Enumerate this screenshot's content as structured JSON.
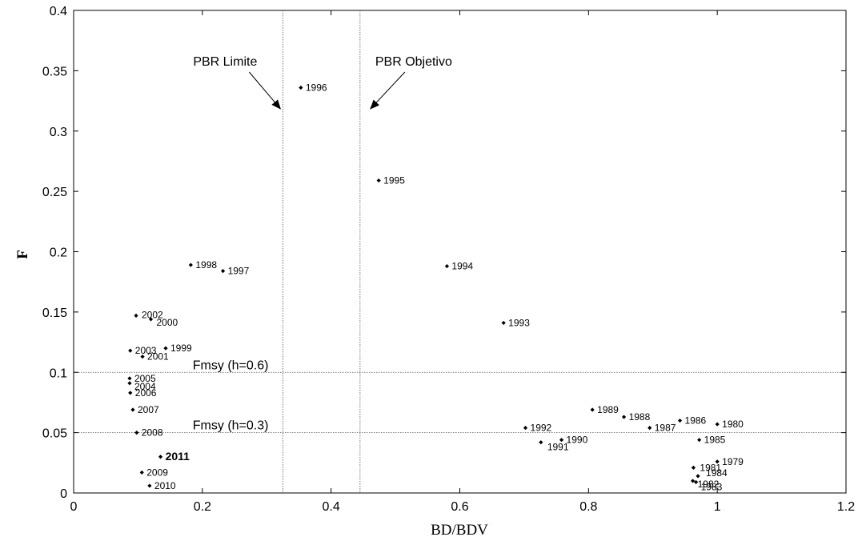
{
  "chart_data": {
    "type": "scatter",
    "title": "",
    "xlabel": "BD/BDV",
    "ylabel": "F",
    "xlim": [
      0,
      1.2
    ],
    "ylim": [
      0,
      0.4
    ],
    "x_ticks": [
      "0",
      "0.2",
      "0.4",
      "0.6",
      "0.8",
      "1",
      "1.2"
    ],
    "y_ticks": [
      "0",
      "0.05",
      "0.1",
      "0.15",
      "0.2",
      "0.25",
      "0.3",
      "0.35",
      "0.4"
    ],
    "grid": false,
    "points": [
      {
        "label": "1979",
        "x": 1.0,
        "y": 0.026
      },
      {
        "label": "1980",
        "x": 1.0,
        "y": 0.057
      },
      {
        "label": "1981",
        "x": 0.963,
        "y": 0.021
      },
      {
        "label": "1982",
        "x": 0.962,
        "y": 0.01
      },
      {
        "label": "1983",
        "x": 0.967,
        "y": 0.009
      },
      {
        "label": "1984",
        "x": 0.97,
        "y": 0.014
      },
      {
        "label": "1985",
        "x": 0.972,
        "y": 0.044
      },
      {
        "label": "1986",
        "x": 0.942,
        "y": 0.06
      },
      {
        "label": "1987",
        "x": 0.895,
        "y": 0.054
      },
      {
        "label": "1988",
        "x": 0.855,
        "y": 0.063
      },
      {
        "label": "1989",
        "x": 0.806,
        "y": 0.069
      },
      {
        "label": "1990",
        "x": 0.758,
        "y": 0.044
      },
      {
        "label": "1991",
        "x": 0.726,
        "y": 0.042
      },
      {
        "label": "1992",
        "x": 0.702,
        "y": 0.054
      },
      {
        "label": "1993",
        "x": 0.668,
        "y": 0.141
      },
      {
        "label": "1994",
        "x": 0.58,
        "y": 0.188
      },
      {
        "label": "1995",
        "x": 0.474,
        "y": 0.259
      },
      {
        "label": "1996",
        "x": 0.353,
        "y": 0.336
      },
      {
        "label": "1997",
        "x": 0.232,
        "y": 0.184
      },
      {
        "label": "1998",
        "x": 0.182,
        "y": 0.189
      },
      {
        "label": "1999",
        "x": 0.143,
        "y": 0.12
      },
      {
        "label": "2000",
        "x": 0.12,
        "y": 0.144
      },
      {
        "label": "2001",
        "x": 0.107,
        "y": 0.113
      },
      {
        "label": "2002",
        "x": 0.097,
        "y": 0.147
      },
      {
        "label": "2003",
        "x": 0.088,
        "y": 0.118
      },
      {
        "label": "2004",
        "x": 0.087,
        "y": 0.091
      },
      {
        "label": "2005",
        "x": 0.087,
        "y": 0.095
      },
      {
        "label": "2006",
        "x": 0.088,
        "y": 0.083
      },
      {
        "label": "2007",
        "x": 0.092,
        "y": 0.069
      },
      {
        "label": "2008",
        "x": 0.098,
        "y": 0.05
      },
      {
        "label": "2009",
        "x": 0.106,
        "y": 0.017
      },
      {
        "label": "2010",
        "x": 0.118,
        "y": 0.006
      },
      {
        "label": "2011",
        "x": 0.135,
        "y": 0.03,
        "highlight": true
      }
    ],
    "reference_lines": {
      "vertical": [
        {
          "x": 0.325,
          "label": "PBR Limite"
        },
        {
          "x": 0.445,
          "label": "PBR Objetivo"
        }
      ],
      "horizontal": [
        {
          "y": 0.1,
          "label": "Fmsy (h=0.6)"
        },
        {
          "y": 0.05,
          "label": "Fmsy (h=0.3)"
        }
      ]
    },
    "colors": {
      "points": "#000000",
      "lines": "#555555"
    }
  }
}
